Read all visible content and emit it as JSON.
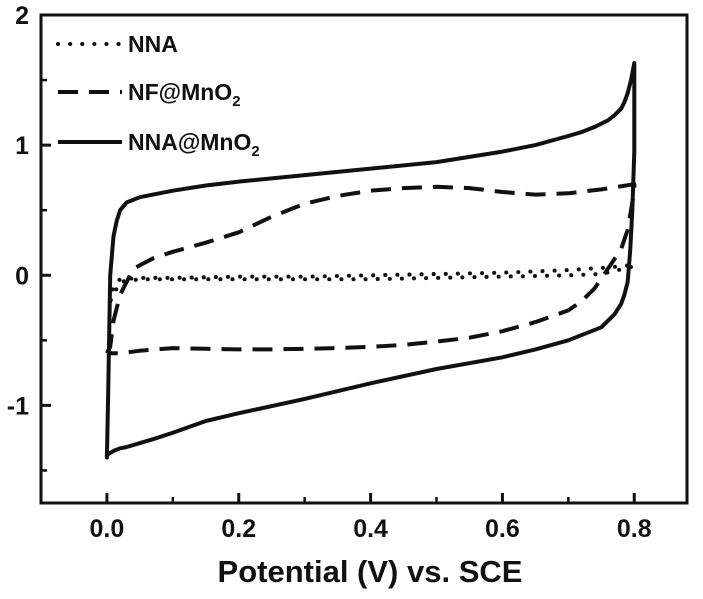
{
  "chart_data": {
    "type": "line",
    "title": "",
    "xlabel": "Potential (V) vs. SCE",
    "ylabel": "",
    "xlim": [
      -0.1,
      0.88
    ],
    "ylim": [
      -1.75,
      2.0
    ],
    "grid": false,
    "legend_position": "top-left",
    "x_ticks": [
      {
        "value": 0.0,
        "label": "0.0"
      },
      {
        "value": 0.2,
        "label": "0.2"
      },
      {
        "value": 0.4,
        "label": "0.4"
      },
      {
        "value": 0.6,
        "label": "0.6"
      },
      {
        "value": 0.8,
        "label": "0.8"
      }
    ],
    "x_minor_ticks": [
      -0.1,
      0.1,
      0.3,
      0.5,
      0.7
    ],
    "y_ticks": [
      {
        "value": -1,
        "label": "-1"
      },
      {
        "value": 0,
        "label": "0"
      },
      {
        "value": 1,
        "label": "1"
      },
      {
        "value": 2,
        "label": "2"
      }
    ],
    "y_minor_ticks": [
      -1.5,
      -0.5,
      0.5,
      1.5
    ],
    "series": [
      {
        "name": "NNA",
        "legend_main": "NNA",
        "legend_sub": "",
        "style": "dotted",
        "x": [
          0.005,
          0.01,
          0.02,
          0.05,
          0.1,
          0.2,
          0.3,
          0.4,
          0.5,
          0.6,
          0.7,
          0.76,
          0.8,
          0.8,
          0.75,
          0.7,
          0.6,
          0.5,
          0.4,
          0.3,
          0.2,
          0.1,
          0.05,
          0.02,
          0.005
        ],
        "y": [
          -0.2,
          -0.08,
          -0.03,
          -0.02,
          -0.02,
          -0.01,
          -0.01,
          0.0,
          0.01,
          0.02,
          0.04,
          0.06,
          0.08,
          0.07,
          0.01,
          0.0,
          -0.01,
          -0.02,
          -0.03,
          -0.03,
          -0.03,
          -0.03,
          -0.03,
          -0.05,
          -0.2
        ]
      },
      {
        "name": "NF@MnO2",
        "legend_main": "NF@MnO",
        "legend_sub": "2",
        "style": "dashed",
        "x": [
          0.0,
          0.005,
          0.01,
          0.02,
          0.04,
          0.07,
          0.1,
          0.15,
          0.2,
          0.25,
          0.3,
          0.35,
          0.4,
          0.45,
          0.5,
          0.55,
          0.6,
          0.65,
          0.7,
          0.75,
          0.8,
          0.8,
          0.79,
          0.78,
          0.76,
          0.74,
          0.72,
          0.7,
          0.65,
          0.6,
          0.55,
          0.5,
          0.45,
          0.4,
          0.35,
          0.3,
          0.25,
          0.2,
          0.15,
          0.1,
          0.05,
          0.02,
          0.0
        ],
        "y": [
          -0.6,
          -0.55,
          -0.35,
          -0.15,
          0.05,
          0.13,
          0.18,
          0.25,
          0.33,
          0.45,
          0.55,
          0.61,
          0.65,
          0.67,
          0.68,
          0.67,
          0.64,
          0.62,
          0.63,
          0.66,
          0.7,
          0.65,
          0.35,
          0.2,
          0.05,
          -0.1,
          -0.2,
          -0.27,
          -0.36,
          -0.43,
          -0.48,
          -0.51,
          -0.535,
          -0.55,
          -0.56,
          -0.565,
          -0.57,
          -0.57,
          -0.565,
          -0.56,
          -0.58,
          -0.6,
          -0.6
        ]
      },
      {
        "name": "NNA@MnO2",
        "legend_main": "NNA@MnO",
        "legend_sub": "2",
        "style": "solid",
        "x": [
          0.0,
          0.002,
          0.005,
          0.01,
          0.015,
          0.02,
          0.03,
          0.05,
          0.07,
          0.1,
          0.15,
          0.2,
          0.3,
          0.4,
          0.5,
          0.6,
          0.65,
          0.7,
          0.72,
          0.74,
          0.76,
          0.77,
          0.78,
          0.785,
          0.79,
          0.795,
          0.8,
          0.8,
          0.797,
          0.794,
          0.79,
          0.785,
          0.78,
          0.77,
          0.75,
          0.7,
          0.65,
          0.6,
          0.5,
          0.4,
          0.3,
          0.2,
          0.15,
          0.1,
          0.07,
          0.05,
          0.03,
          0.02,
          0.01,
          0.0,
          0.0
        ],
        "y": [
          -1.4,
          -0.9,
          0.0,
          0.3,
          0.42,
          0.5,
          0.56,
          0.6,
          0.62,
          0.65,
          0.69,
          0.72,
          0.77,
          0.82,
          0.87,
          0.95,
          1.0,
          1.07,
          1.1,
          1.14,
          1.19,
          1.23,
          1.28,
          1.33,
          1.4,
          1.5,
          1.63,
          0.95,
          0.5,
          0.2,
          -0.05,
          -0.15,
          -0.22,
          -0.3,
          -0.4,
          -0.5,
          -0.57,
          -0.63,
          -0.72,
          -0.83,
          -0.95,
          -1.06,
          -1.12,
          -1.21,
          -1.26,
          -1.29,
          -1.32,
          -1.33,
          -1.35,
          -1.38,
          -1.4
        ]
      }
    ]
  }
}
